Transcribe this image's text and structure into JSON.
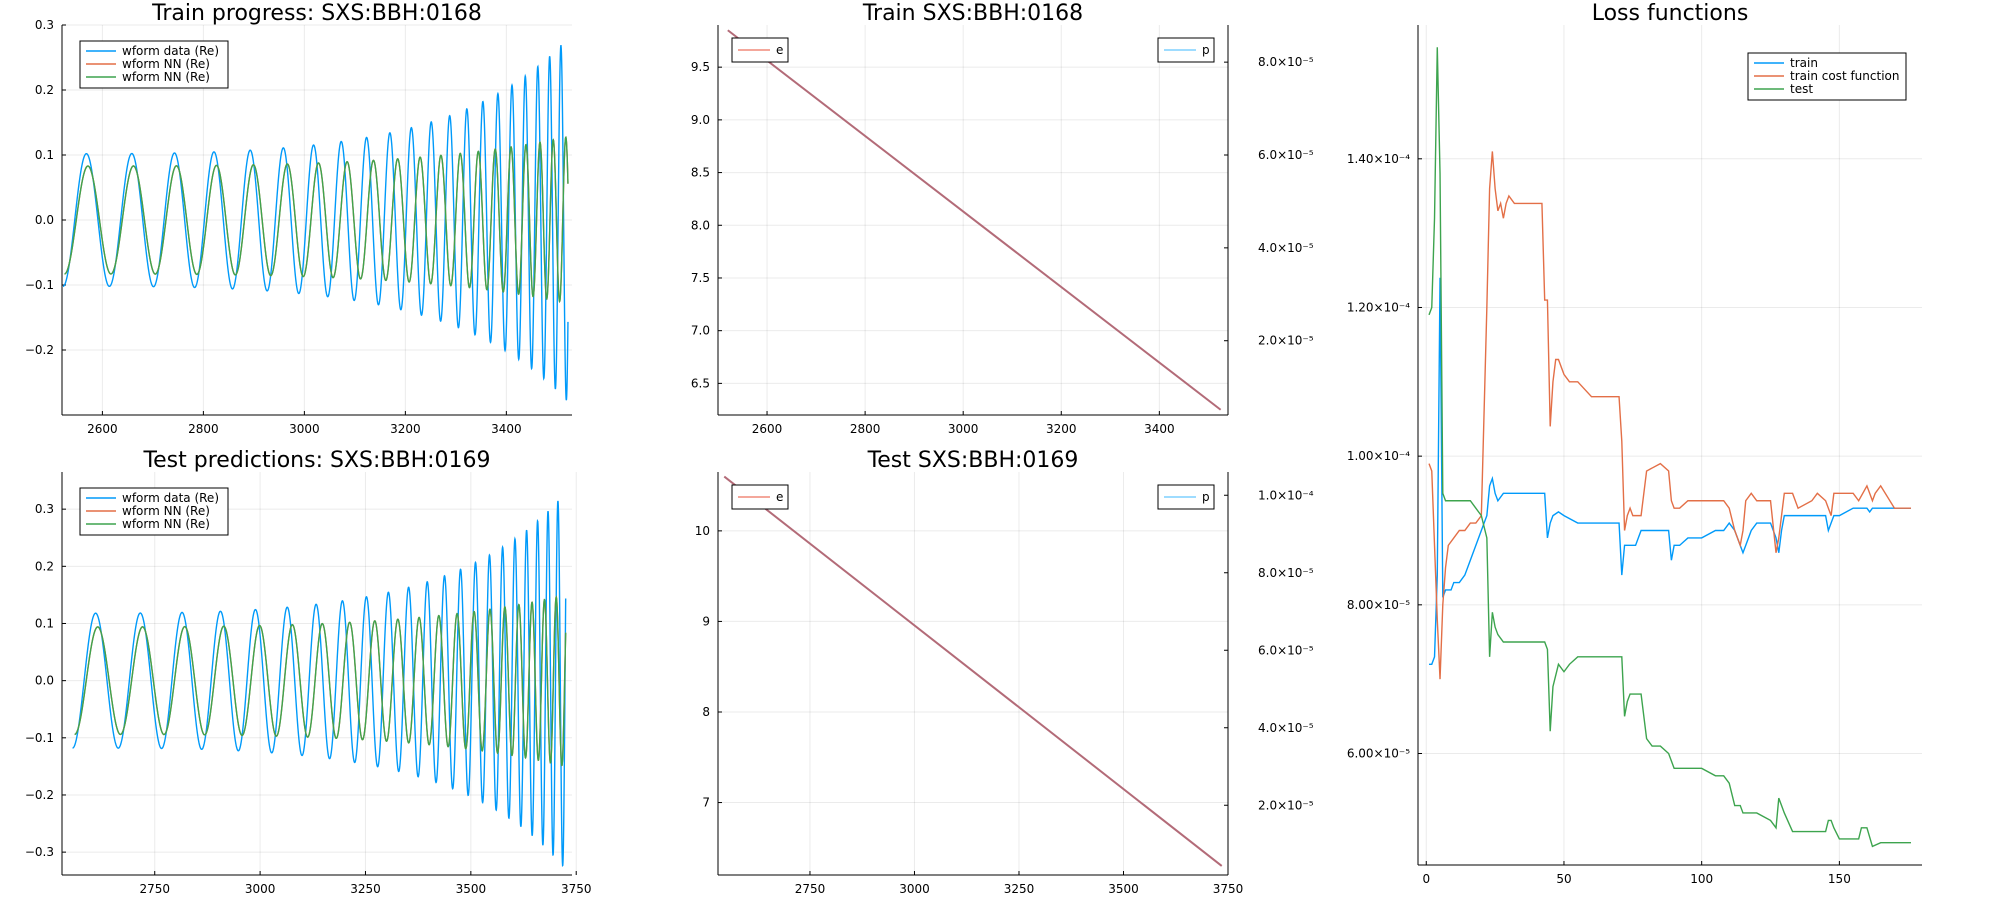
{
  "colors": {
    "blue": "#009AFA",
    "orange": "#E36F47",
    "green": "#3DA44E",
    "mauve": "#B36B78",
    "lightblue": "#7fd0ff",
    "salmon": "#f08a7a"
  },
  "chart_data": [
    {
      "id": "train_progress",
      "type": "line",
      "title": "Train progress: SXS:BBH:0168",
      "xlim": [
        2520,
        3530
      ],
      "ylim": [
        -0.3,
        0.3
      ],
      "xticks": [
        2600,
        2800,
        3000,
        3200,
        3400
      ],
      "xtick_labels": [
        "2600",
        "2800",
        "3000",
        "3200",
        "3400"
      ],
      "yticks": [
        -0.2,
        -0.1,
        0.0,
        0.1,
        0.2,
        0.3
      ],
      "ytick_labels": [
        "−0.2",
        "−0.1",
        "0.0",
        "0.1",
        "0.2",
        "0.3"
      ],
      "legend": [
        "wform data (Re)",
        "wform NN (Re)",
        "wform NN (Re)"
      ],
      "legend_position": "top-left",
      "series": [
        {
          "name": "wform data (Re)",
          "color": "#009AFA",
          "x0": 2522,
          "x1": 3522,
          "y_start": -0.09,
          "y_end": 0.285,
          "amp_start": 0.102,
          "amp_end": 0.28,
          "period_start": 93,
          "period_end": 21
        },
        {
          "name": "wform NN (Re)",
          "color": "#E36F47",
          "x0": 2525,
          "x1": 3522,
          "y_start": -0.08,
          "y_end": -0.02,
          "amp_start": 0.083,
          "amp_end": 0.128,
          "period_start": 93,
          "period_end": 24
        },
        {
          "name": "wform NN (Re)",
          "color": "#3DA44E",
          "x0": 2525,
          "x1": 3522,
          "y_start": -0.08,
          "y_end": -0.02,
          "amp_start": 0.083,
          "amp_end": 0.128,
          "period_start": 93,
          "period_end": 24
        }
      ]
    },
    {
      "id": "train_params",
      "type": "line",
      "title": "Train SXS:BBH:0168",
      "xlim": [
        2500,
        3540
      ],
      "ylim": [
        6.2,
        9.9
      ],
      "y2lim": [
        4e-06,
        8.8e-05
      ],
      "xticks": [
        2600,
        2800,
        3000,
        3200,
        3400
      ],
      "xtick_labels": [
        "2600",
        "2800",
        "3000",
        "3200",
        "3400"
      ],
      "yticks": [
        6.5,
        7.0,
        7.5,
        8.0,
        8.5,
        9.0,
        9.5
      ],
      "ytick_labels": [
        "6.5",
        "7.0",
        "7.5",
        "8.0",
        "8.5",
        "9.0",
        "9.5"
      ],
      "y2ticks": [
        2e-05,
        4e-05,
        6e-05,
        8e-05
      ],
      "y2tick_labels": [
        "2.0×10⁻⁵",
        "4.0×10⁻⁵",
        "6.0×10⁻⁵",
        "8.0×10⁻⁵"
      ],
      "legend_left": "e",
      "legend_right": "p",
      "series": [
        {
          "name": "e",
          "color": "#B36B78",
          "x": [
            2520,
            3525
          ],
          "y": [
            9.85,
            6.25
          ]
        }
      ]
    },
    {
      "id": "loss_functions",
      "type": "line",
      "title": "Loss functions",
      "xlim": [
        -3,
        180
      ],
      "ylim": [
        4.5e-05,
        0.000158
      ],
      "xticks": [
        0,
        50,
        100,
        150
      ],
      "xtick_labels": [
        "0",
        "50",
        "100",
        "150"
      ],
      "yticks": [
        6e-05,
        8e-05,
        0.0001,
        0.00012,
        0.00014
      ],
      "ytick_labels": [
        "6.00×10⁻⁵",
        "8.00×10⁻⁵",
        "1.00×10⁻⁴",
        "1.20×10⁻⁴",
        "1.40×10⁻⁴"
      ],
      "legend": [
        "train",
        "train cost function",
        "test"
      ],
      "legend_position": "top-right",
      "series": [
        {
          "name": "train",
          "color": "#009AFA",
          "x": [
            1,
            2,
            3,
            4,
            5,
            6,
            7,
            8,
            9,
            10,
            12,
            14,
            16,
            18,
            20,
            22,
            23,
            24,
            25,
            26,
            28,
            30,
            32,
            34,
            36,
            38,
            40,
            42,
            43,
            44,
            45,
            46,
            48,
            50,
            55,
            60,
            65,
            70,
            71,
            72,
            73,
            74,
            76,
            78,
            80,
            85,
            88,
            89,
            90,
            91,
            92,
            95,
            100,
            105,
            108,
            110,
            112,
            114,
            115,
            116,
            118,
            120,
            125,
            127,
            128,
            129,
            130,
            135,
            140,
            145,
            146,
            147,
            148,
            150,
            155,
            160,
            161,
            162,
            165,
            170,
            175,
            176
          ],
          "y": [
            7.2e-05,
            7.2e-05,
            7.3e-05,
            8.4e-05,
            0.000124,
            8.1e-05,
            8.2e-05,
            8.2e-05,
            8.2e-05,
            8.3e-05,
            8.3e-05,
            8.4e-05,
            8.6e-05,
            8.8e-05,
            9e-05,
            9.2e-05,
            9.6e-05,
            9.7e-05,
            9.5e-05,
            9.4e-05,
            9.5e-05,
            9.5e-05,
            9.5e-05,
            9.5e-05,
            9.5e-05,
            9.5e-05,
            9.5e-05,
            9.5e-05,
            9.5e-05,
            8.9e-05,
            9.1e-05,
            9.2e-05,
            9.25e-05,
            9.2e-05,
            9.1e-05,
            9.1e-05,
            9.1e-05,
            9.1e-05,
            8.4e-05,
            8.8e-05,
            8.8e-05,
            8.8e-05,
            8.8e-05,
            9e-05,
            9e-05,
            9e-05,
            9e-05,
            8.6e-05,
            8.8e-05,
            8.8e-05,
            8.8e-05,
            8.9e-05,
            8.9e-05,
            9e-05,
            9e-05,
            9.1e-05,
            9e-05,
            8.8e-05,
            8.7e-05,
            8.8e-05,
            9e-05,
            9.1e-05,
            9.1e-05,
            8.9e-05,
            8.7e-05,
            9e-05,
            9.2e-05,
            9.2e-05,
            9.2e-05,
            9.2e-05,
            9e-05,
            9.1e-05,
            9.2e-05,
            9.2e-05,
            9.3e-05,
            9.3e-05,
            9.25e-05,
            9.3e-05,
            9.3e-05,
            9.3e-05,
            9.3e-05,
            9.3e-05
          ]
        },
        {
          "name": "train cost function",
          "color": "#E36F47",
          "x": [
            1,
            2,
            3,
            4,
            5,
            6,
            7,
            8,
            10,
            12,
            14,
            16,
            18,
            20,
            22,
            23,
            24,
            25,
            26,
            27,
            28,
            29,
            30,
            32,
            34,
            36,
            38,
            40,
            42,
            43,
            44,
            45,
            46,
            47,
            48,
            50,
            52,
            55,
            60,
            65,
            70,
            71,
            72,
            73,
            74,
            75,
            78,
            80,
            85,
            88,
            89,
            90,
            92,
            95,
            100,
            105,
            108,
            110,
            112,
            114,
            115,
            116,
            118,
            120,
            125,
            127,
            128,
            129,
            130,
            133,
            135,
            140,
            142,
            145,
            147,
            148,
            150,
            155,
            157,
            160,
            162,
            163,
            165,
            170,
            175,
            176
          ],
          "y": [
            9.9e-05,
            9.8e-05,
            8.8e-05,
            7.8e-05,
            7e-05,
            8e-05,
            8.5e-05,
            8.8e-05,
            8.9e-05,
            9e-05,
            9e-05,
            9.1e-05,
            9.1e-05,
            9.2e-05,
            0.00012,
            0.000136,
            0.000141,
            0.000136,
            0.000133,
            0.000134,
            0.000132,
            0.000134,
            0.000135,
            0.000134,
            0.000134,
            0.000134,
            0.000134,
            0.000134,
            0.000134,
            0.000121,
            0.000121,
            0.000104,
            0.00011,
            0.000113,
            0.000113,
            0.000111,
            0.00011,
            0.00011,
            0.000108,
            0.000108,
            0.000108,
            0.000102,
            9e-05,
            9.2e-05,
            9.3e-05,
            9.2e-05,
            9.2e-05,
            9.8e-05,
            9.9e-05,
            9.8e-05,
            9.4e-05,
            9.3e-05,
            9.3e-05,
            9.4e-05,
            9.4e-05,
            9.4e-05,
            9.4e-05,
            9.3e-05,
            9e-05,
            8.8e-05,
            9e-05,
            9.4e-05,
            9.5e-05,
            9.4e-05,
            9.4e-05,
            8.7e-05,
            8.9e-05,
            9.2e-05,
            9.5e-05,
            9.5e-05,
            9.3e-05,
            9.4e-05,
            9.5e-05,
            9.4e-05,
            9.2e-05,
            9.5e-05,
            9.5e-05,
            9.5e-05,
            9.4e-05,
            9.6e-05,
            9.4e-05,
            9.5e-05,
            9.6e-05,
            9.3e-05,
            9.3e-05,
            9.3e-05
          ]
        },
        {
          "name": "test",
          "color": "#3DA44E",
          "x": [
            1,
            2,
            3,
            4,
            5,
            6,
            7,
            8,
            10,
            12,
            14,
            16,
            18,
            20,
            22,
            23,
            24,
            25,
            26,
            28,
            30,
            32,
            34,
            36,
            38,
            40,
            42,
            43,
            44,
            45,
            46,
            48,
            50,
            52,
            55,
            58,
            60,
            65,
            70,
            71,
            72,
            73,
            74,
            76,
            78,
            80,
            82,
            84,
            85,
            88,
            90,
            92,
            95,
            100,
            105,
            108,
            110,
            112,
            114,
            115,
            116,
            118,
            120,
            125,
            127,
            128,
            129,
            130,
            133,
            135,
            140,
            145,
            146,
            147,
            148,
            150,
            155,
            157,
            158,
            160,
            162,
            165,
            170,
            175,
            176
          ],
          "y": [
            0.000119,
            0.00012,
            0.000132,
            0.000155,
            0.000138,
            9.5e-05,
            9.4e-05,
            9.4e-05,
            9.4e-05,
            9.4e-05,
            9.4e-05,
            9.4e-05,
            9.3e-05,
            9.2e-05,
            8.9e-05,
            7.3e-05,
            7.9e-05,
            7.7e-05,
            7.6e-05,
            7.5e-05,
            7.5e-05,
            7.5e-05,
            7.5e-05,
            7.5e-05,
            7.5e-05,
            7.5e-05,
            7.5e-05,
            7.5e-05,
            7.4e-05,
            6.3e-05,
            6.9e-05,
            7.2e-05,
            7.1e-05,
            7.2e-05,
            7.3e-05,
            7.3e-05,
            7.3e-05,
            7.3e-05,
            7.3e-05,
            7.3e-05,
            6.5e-05,
            6.7e-05,
            6.8e-05,
            6.8e-05,
            6.8e-05,
            6.2e-05,
            6.1e-05,
            6.1e-05,
            6.1e-05,
            6e-05,
            5.8e-05,
            5.8e-05,
            5.8e-05,
            5.8e-05,
            5.7e-05,
            5.7e-05,
            5.6e-05,
            5.3e-05,
            5.3e-05,
            5.2e-05,
            5.2e-05,
            5.2e-05,
            5.2e-05,
            5.1e-05,
            5e-05,
            5.4e-05,
            5.3e-05,
            5.2e-05,
            4.95e-05,
            4.95e-05,
            4.95e-05,
            4.95e-05,
            5.1e-05,
            5.1e-05,
            5e-05,
            4.85e-05,
            4.85e-05,
            4.85e-05,
            5e-05,
            5e-05,
            4.75e-05,
            4.8e-05,
            4.8e-05,
            4.8e-05,
            4.8e-05
          ]
        }
      ]
    },
    {
      "id": "test_predictions",
      "type": "line",
      "title": "Test predictions: SXS:BBH:0169",
      "xlim": [
        2530,
        3740
      ],
      "ylim": [
        -0.34,
        0.365
      ],
      "xticks": [
        2750,
        3000,
        3250,
        3500,
        3750
      ],
      "xtick_labels": [
        "2750",
        "3000",
        "3250",
        "3500",
        "3750"
      ],
      "yticks": [
        -0.3,
        -0.2,
        -0.1,
        0.0,
        0.1,
        0.2,
        0.3
      ],
      "ytick_labels": [
        "−0.3",
        "−0.2",
        "−0.1",
        "0.0",
        "0.1",
        "0.2",
        "0.3"
      ],
      "legend": [
        "wform data (Re)",
        "wform NN (Re)",
        "wform NN (Re)"
      ],
      "legend_position": "top-left",
      "series": [
        {
          "name": "wform data (Re)",
          "color": "#009AFA",
          "x0": 2555,
          "x1": 3725,
          "y_start": -0.06,
          "y_end": 0.34,
          "amp_start": 0.118,
          "amp_end": 0.33,
          "period_start": 110,
          "period_end": 22
        },
        {
          "name": "wform NN (Re)",
          "color": "#E36F47",
          "x0": 2560,
          "x1": 3725,
          "y_start": -0.09,
          "y_end": -0.12,
          "amp_start": 0.094,
          "amp_end": 0.15,
          "period_start": 110,
          "period_end": 26
        },
        {
          "name": "wform NN (Re)",
          "color": "#3DA44E",
          "x0": 2560,
          "x1": 3725,
          "y_start": -0.09,
          "y_end": -0.12,
          "amp_start": 0.094,
          "amp_end": 0.15,
          "period_start": 110,
          "period_end": 26
        }
      ]
    },
    {
      "id": "test_params",
      "type": "line",
      "title": "Test SXS:BBH:0169",
      "xlim": [
        2530,
        3750
      ],
      "ylim": [
        6.2,
        10.65
      ],
      "y2lim": [
        2e-06,
        0.000106
      ],
      "xticks": [
        2750,
        3000,
        3250,
        3500,
        3750
      ],
      "xtick_labels": [
        "2750",
        "3000",
        "3250",
        "3500",
        "3750"
      ],
      "yticks": [
        7,
        8,
        9,
        10
      ],
      "ytick_labels": [
        "7",
        "8",
        "9",
        "10"
      ],
      "y2ticks": [
        2e-05,
        4e-05,
        6e-05,
        8e-05,
        0.0001
      ],
      "y2tick_labels": [
        "2.0×10⁻⁵",
        "4.0×10⁻⁵",
        "6.0×10⁻⁵",
        "8.0×10⁻⁵",
        "1.0×10⁻⁴"
      ],
      "legend_left": "e",
      "legend_right": "p",
      "series": [
        {
          "name": "e",
          "color": "#B36B78",
          "x": [
            2545,
            3735
          ],
          "y": [
            10.6,
            6.3
          ]
        }
      ]
    }
  ]
}
